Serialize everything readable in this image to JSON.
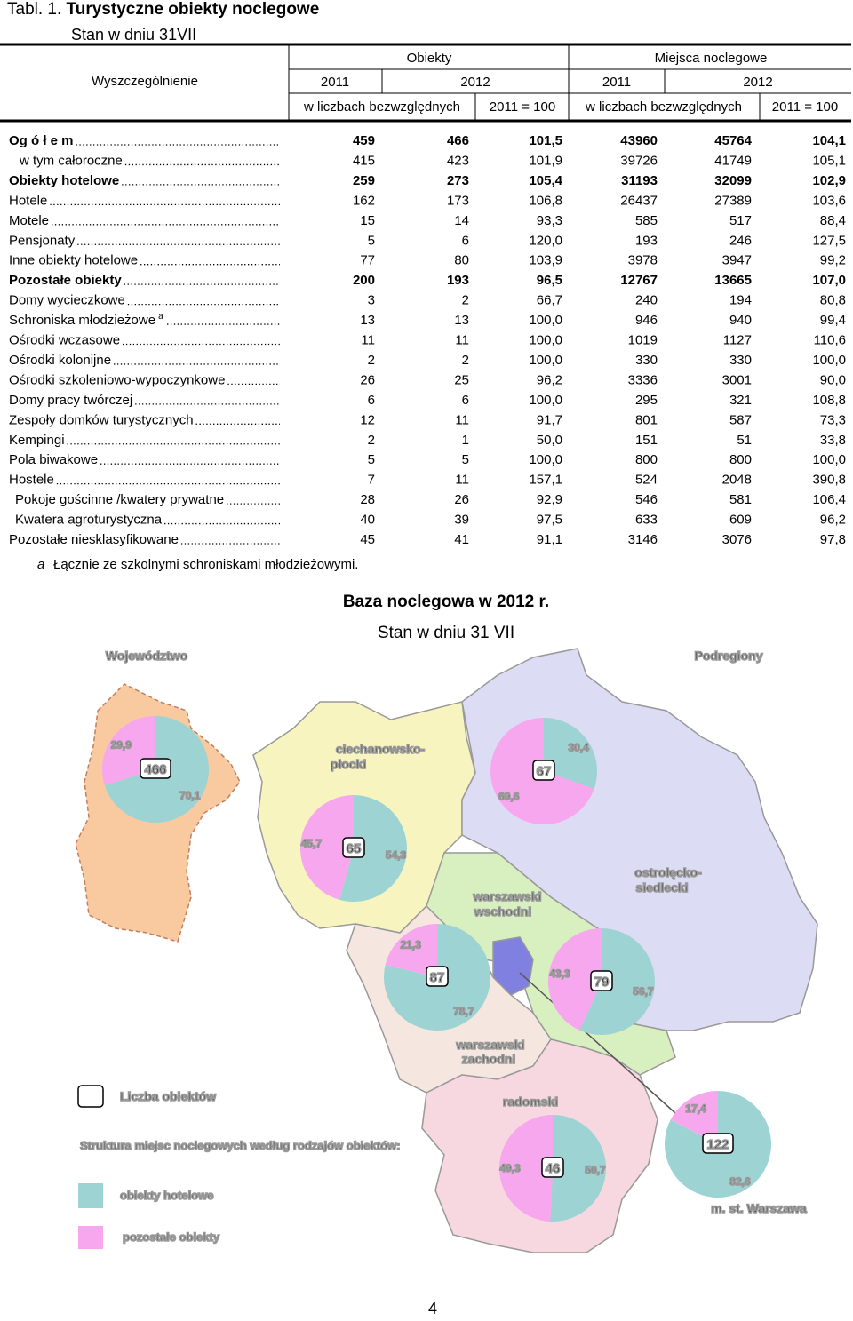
{
  "header": {
    "label": "Tabl. 1.",
    "title": "Turystyczne obiekty noclegowe",
    "subtitle": "Stan w dniu 31VII"
  },
  "table": {
    "stub": "Wyszczególnienie",
    "groups": [
      "Obiekty",
      "Miejsca noclegowe"
    ],
    "years": [
      "2011",
      "2012",
      "2011",
      "2012"
    ],
    "subheads": [
      "w liczbach bezwzględnych",
      "2011 = 100",
      "w liczbach bezwzględnych",
      "2011 = 100"
    ],
    "rows": [
      [
        "Og ó ł e m",
        "459",
        "466",
        "101,5",
        "43960",
        "45764",
        "104,1"
      ],
      [
        "w tym całoroczne",
        "415",
        "423",
        "101,9",
        "39726",
        "41749",
        "105,1"
      ],
      [
        "Obiekty hotelowe",
        "259",
        "273",
        "105,4",
        "31193",
        "32099",
        "102,9"
      ],
      [
        "Hotele",
        "162",
        "173",
        "106,8",
        "26437",
        "27389",
        "103,6"
      ],
      [
        "Motele",
        "15",
        "14",
        "93,3",
        "585",
        "517",
        "88,4"
      ],
      [
        "Pensjonaty",
        "5",
        "6",
        "120,0",
        "193",
        "246",
        "127,5"
      ],
      [
        "Inne obiekty hotelowe",
        "77",
        "80",
        "103,9",
        "3978",
        "3947",
        "99,2"
      ],
      [
        "Pozostałe obiekty",
        "200",
        "193",
        "96,5",
        "12767",
        "13665",
        "107,0"
      ],
      [
        "Domy wycieczkowe",
        "3",
        "2",
        "66,7",
        "240",
        "194",
        "80,8"
      ],
      [
        "Schroniska młodzieżowe",
        "13",
        "13",
        "100,0",
        "946",
        "940",
        "99,4"
      ],
      [
        "Ośrodki wczasowe",
        "11",
        "11",
        "100,0",
        "1019",
        "1127",
        "110,6"
      ],
      [
        "Ośrodki kolonijne",
        "2",
        "2",
        "100,0",
        "330",
        "330",
        "100,0"
      ],
      [
        "Ośrodki szkoleniowo-wypoczynkowe",
        "26",
        "25",
        "96,2",
        "3336",
        "3001",
        "90,0"
      ],
      [
        "Domy pracy twórczej",
        "6",
        "6",
        "100,0",
        "295",
        "321",
        "108,8"
      ],
      [
        "Zespoły domków turystycznych",
        "12",
        "11",
        "91,7",
        "801",
        "587",
        "73,3"
      ],
      [
        "Kempingi",
        "2",
        "1",
        "50,0",
        "151",
        "51",
        "33,8"
      ],
      [
        "Pola biwakowe",
        "5",
        "5",
        "100,0",
        "800",
        "800",
        "100,0"
      ],
      [
        "Hostele",
        "7",
        "11",
        "157,1",
        "524",
        "2048",
        "390,8"
      ],
      [
        "Pokoje gościnne /kwatery prywatne",
        "28",
        "26",
        "92,9",
        "546",
        "581",
        "106,4"
      ],
      [
        "Kwatera agroturystyczna",
        "40",
        "39",
        "97,5",
        "633",
        "609",
        "96,2"
      ],
      [
        "Pozostałe niesklasyfikowane",
        "45",
        "41",
        "91,1",
        "3146",
        "3076",
        "97,8"
      ]
    ],
    "footnote": {
      "mark": "a",
      "text": "Łącznie ze szkolnymi schroniskami młodzieżowymi."
    }
  },
  "map": {
    "title": "Baza noclegowa  w 2012 r.",
    "subtitle": "Stan w dniu 31 VII",
    "headings": [
      "Województwo",
      "Podregiony"
    ],
    "legend": {
      "count": "Liczba obiektów",
      "structure": "Struktura miejsc noclegowych według rodzajów obiektów:",
      "hotel": "obiekty hotelowe",
      "other": "pozostałe obiekty",
      "hotel_color": "#9ed3d3",
      "other_color": "#f7a7ee"
    },
    "pies": [
      {
        "objects": 466,
        "shares": [
          70.1,
          29.9
        ],
        "share_labels": [
          "70,1",
          "29,9"
        ]
      },
      {
        "name": [
          "ciechanowsko-",
          "płocki"
        ],
        "objects": 65,
        "shares": [
          54.3,
          45.7
        ],
        "share_labels": [
          "54,3",
          "45,7"
        ]
      },
      {
        "name": [
          "ostrołęcko-",
          "siedlecki"
        ],
        "objects": 67,
        "shares": [
          30.4,
          69.6
        ],
        "share_labels": [
          "30,4",
          "69,6"
        ]
      },
      {
        "name": [
          "warszawski",
          "wschodni"
        ],
        "objects": 79,
        "shares": [
          56.7,
          43.3
        ],
        "share_labels": [
          "56,7",
          "43,3"
        ]
      },
      {
        "name": [
          "warszawski",
          "zachodni"
        ],
        "objects": 87,
        "shares": [
          78.7,
          21.3
        ],
        "share_labels": [
          "78,7",
          "21,3"
        ]
      },
      {
        "name": [
          "radomski"
        ],
        "objects": 46,
        "shares": [
          50.7,
          49.3
        ],
        "share_labels": [
          "50,7",
          "49,3"
        ]
      },
      {
        "name": [
          "m. st. Warszawa"
        ],
        "objects": 122,
        "shares": [
          82.6,
          17.4
        ],
        "share_labels": [
          "82,6",
          "17,4"
        ]
      }
    ]
  },
  "page_number": "4"
}
